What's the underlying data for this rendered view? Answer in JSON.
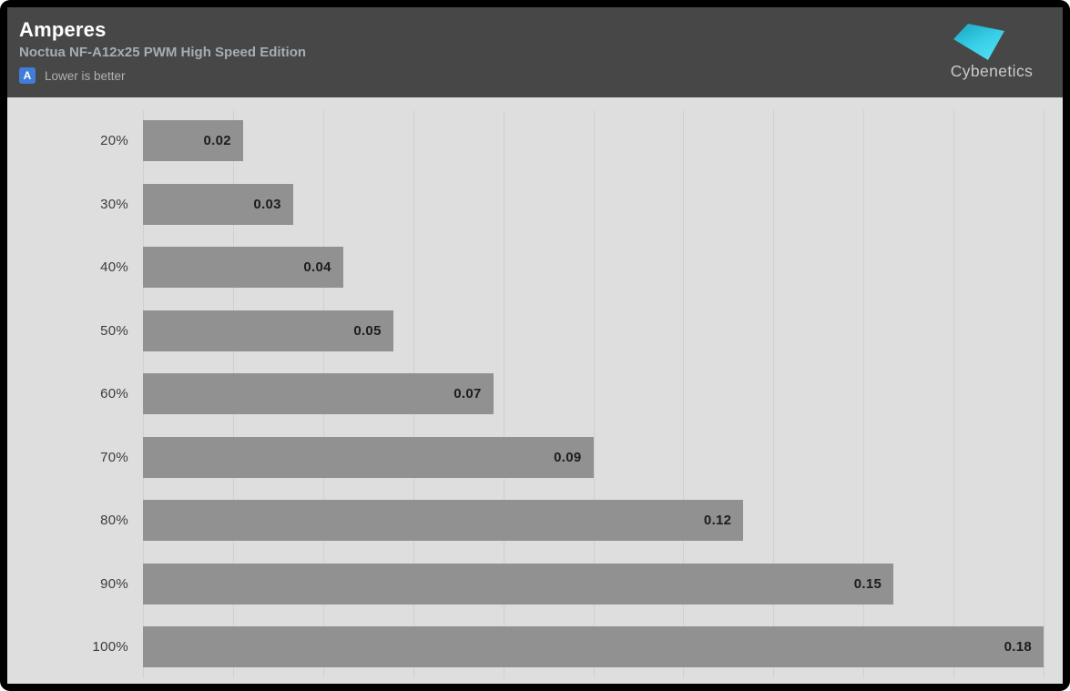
{
  "header": {
    "title": "Amperes",
    "subtitle": "Noctua NF-A12x25 PWM High Speed Edition",
    "badge": "A",
    "note": "Lower is better",
    "logo_text": "Cybenetics"
  },
  "colors": {
    "frame": "#000000",
    "header_bg": "#474747",
    "chart_bg": "#dedede",
    "gridline": "#d0d0d0",
    "bar": "#919191",
    "badge_bg": "#3f7ed8",
    "title_text": "#ffffff",
    "subtitle_text": "#a4adb5",
    "note_text": "#b0b0b0",
    "category_label_text": "#3c3c3c",
    "value_label_text": "#1d1d1d",
    "logo_gradient_dark": "#1ba3bd",
    "logo_gradient_light": "#4fdef2",
    "logo_text_color": "#cbcbcb"
  },
  "chart_data": {
    "type": "bar",
    "orientation": "horizontal",
    "title": "Amperes",
    "subtitle": "Noctua NF-A12x25 PWM High Speed Edition",
    "categories": [
      "20%",
      "30%",
      "40%",
      "50%",
      "60%",
      "70%",
      "80%",
      "90%",
      "100%"
    ],
    "values": [
      0.02,
      0.03,
      0.04,
      0.05,
      0.07,
      0.09,
      0.12,
      0.15,
      0.18
    ],
    "xlabel": "",
    "ylabel": "",
    "xlim": [
      0,
      0.18
    ],
    "gridline_interval": 0.018,
    "gridline_count": 11,
    "grid": true,
    "legend": false,
    "value_label_position": "inside-end",
    "value_decimals": 2
  },
  "layout_note": "Lower is better annotation shown with blue A badge"
}
